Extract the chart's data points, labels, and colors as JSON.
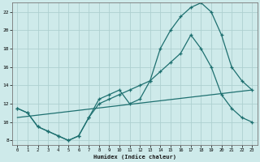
{
  "xlabel": "Humidex (Indice chaleur)",
  "background_color": "#ceeaea",
  "grid_color": "#aed0d0",
  "line_color": "#1e7070",
  "xlim": [
    -0.5,
    23.5
  ],
  "ylim": [
    7.5,
    23.0
  ],
  "yticks": [
    8,
    10,
    12,
    14,
    16,
    18,
    20,
    22
  ],
  "xticks": [
    0,
    1,
    2,
    3,
    4,
    5,
    6,
    7,
    8,
    9,
    10,
    11,
    12,
    13,
    14,
    15,
    16,
    17,
    18,
    19,
    20,
    21,
    22,
    23
  ],
  "line1_x": [
    0,
    1,
    2,
    3,
    4,
    5,
    6,
    7,
    8,
    9,
    10,
    11,
    12,
    13,
    14,
    15,
    16,
    17,
    18,
    19,
    20,
    21,
    22,
    23
  ],
  "line1_y": [
    11.5,
    11.0,
    9.5,
    9.0,
    8.5,
    8.0,
    8.5,
    10.5,
    12.5,
    13.0,
    13.5,
    12.0,
    12.5,
    14.5,
    18.0,
    20.0,
    21.5,
    22.5,
    23.0,
    22.0,
    19.5,
    16.0,
    14.5,
    13.5
  ],
  "line2_x": [
    0,
    1,
    2,
    3,
    4,
    5,
    6,
    7,
    8,
    9,
    10,
    11,
    12,
    13,
    14,
    15,
    16,
    17,
    18,
    19,
    20,
    21,
    22,
    23
  ],
  "line2_y": [
    11.5,
    11.0,
    9.5,
    9.0,
    8.5,
    8.0,
    8.5,
    10.5,
    12.0,
    12.5,
    13.0,
    13.5,
    14.0,
    14.5,
    15.5,
    16.5,
    17.5,
    19.5,
    18.0,
    16.0,
    13.0,
    11.5,
    10.5,
    10.0
  ],
  "line3_x": [
    0,
    23
  ],
  "line3_y": [
    10.5,
    13.5
  ]
}
